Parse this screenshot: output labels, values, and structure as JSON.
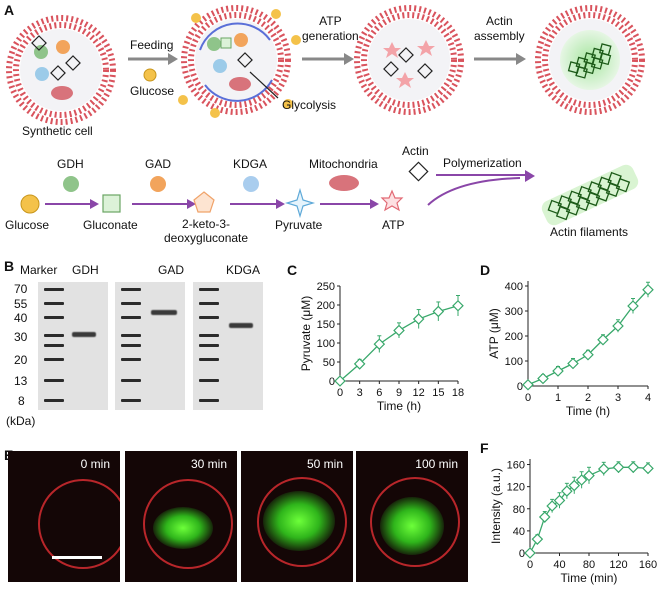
{
  "panel_a": {
    "letter": "A",
    "synthetic_cell_label": "Synthetic cell",
    "feeding_label": "Feeding",
    "glucose_small_label": "Glucose",
    "glycolysis_label": "Glycolysis",
    "atp_generation_label": "ATP\ngeneration",
    "actin_assembly_label": "Actin\nassembly",
    "pathway": {
      "enzymes": [
        "GDH",
        "GAD",
        "KDGA",
        "Mitochondria",
        "Actin"
      ],
      "compounds": [
        "Glucose",
        "Gluconate",
        "2-keto-3-\ndeoxygluconate",
        "Pyruvate",
        "ATP"
      ],
      "polymerization_label": "Polymerization",
      "product_label": "Actin filaments"
    }
  },
  "panel_b": {
    "letter": "B",
    "marker_label": "Marker",
    "lanes": [
      "GDH",
      "GAD",
      "KDGA"
    ],
    "ladder_kda": [
      "70",
      "55",
      "40",
      "30",
      "20",
      "13",
      "8"
    ],
    "unit_label": "(kDa)"
  },
  "panel_c": {
    "letter": "C",
    "chart_data": {
      "type": "line",
      "xlabel": "Time (h)",
      "ylabel": "Pyruvate (μM)",
      "x": [
        0,
        3,
        6,
        9,
        12,
        15,
        18
      ],
      "y": [
        0,
        45,
        97,
        133,
        163,
        183,
        198
      ],
      "err": [
        5,
        12,
        22,
        20,
        25,
        25,
        27
      ],
      "xlim": [
        0,
        18
      ],
      "ylim": [
        0,
        250
      ],
      "xticks": [
        "0",
        "3",
        "6",
        "9",
        "12",
        "15",
        "18"
      ],
      "yticks": [
        "0",
        "50",
        "100",
        "150",
        "200",
        "250"
      ],
      "color": "#39a86b"
    }
  },
  "panel_d": {
    "letter": "D",
    "chart_data": {
      "type": "line",
      "xlabel": "Time (h)",
      "ylabel": "ATP (μM)",
      "x": [
        0,
        0.5,
        1,
        1.5,
        2,
        2.5,
        3,
        3.5,
        4
      ],
      "y": [
        5,
        30,
        60,
        90,
        125,
        185,
        240,
        320,
        385
      ],
      "err": [
        8,
        15,
        18,
        20,
        18,
        20,
        25,
        30,
        30
      ],
      "xlim": [
        0,
        4
      ],
      "ylim": [
        0,
        420
      ],
      "xticks": [
        "0",
        "1",
        "2",
        "3",
        "4"
      ],
      "yticks": [
        "0",
        "100",
        "200",
        "300",
        "400"
      ],
      "color": "#39a86b"
    }
  },
  "panel_e": {
    "letter": "E",
    "timepoints": [
      "0 min",
      "30 min",
      "50 min",
      "100 min"
    ]
  },
  "panel_f": {
    "letter": "F",
    "chart_data": {
      "type": "line",
      "xlabel": "Time (min)",
      "ylabel": "Intensity (a.u.)",
      "x": [
        0,
        10,
        20,
        30,
        40,
        50,
        60,
        70,
        80,
        100,
        120,
        140,
        160
      ],
      "y": [
        0,
        25,
        65,
        85,
        95,
        112,
        122,
        132,
        140,
        152,
        155,
        155,
        153
      ],
      "err": [
        5,
        8,
        10,
        12,
        14,
        14,
        15,
        15,
        15,
        12,
        10,
        10,
        10
      ],
      "xlim": [
        0,
        160
      ],
      "ylim": [
        0,
        170
      ],
      "xticks": [
        "0",
        "40",
        "80",
        "120",
        "160"
      ],
      "yticks": [
        "0",
        "40",
        "80",
        "120",
        "160"
      ],
      "color": "#39a86b"
    }
  }
}
